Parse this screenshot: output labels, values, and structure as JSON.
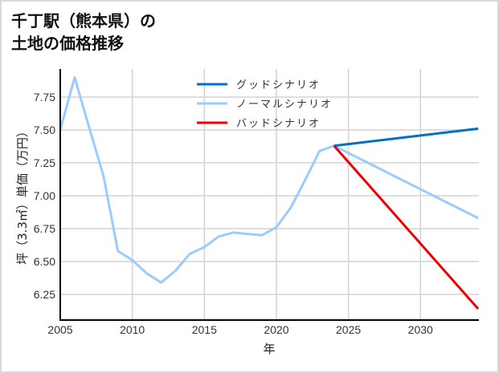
{
  "title": "千丁駅（熊本県）の\n土地の価格推移",
  "colors": {
    "good": "#0070C8",
    "normal": "#99CCFF",
    "bad": "#EE0000",
    "grid": "#d3d3d3",
    "axis": "#000000",
    "border": "#d8d8d8"
  },
  "chart_data": {
    "type": "line",
    "title": "千丁駅（熊本県）の土地の価格推移",
    "xlabel": "年",
    "ylabel": "坪（3.3㎡）単価（万円）",
    "xlim": [
      2005,
      2034
    ],
    "ylim": [
      6.06,
      7.96
    ],
    "x_ticks": [
      2005,
      2010,
      2015,
      2020,
      2025,
      2030
    ],
    "y_ticks": [
      6.25,
      6.5,
      6.75,
      7.0,
      7.25,
      7.5,
      7.75
    ],
    "y_tick_labels": [
      "6.25",
      "6.50",
      "6.75",
      "7.00",
      "7.25",
      "7.50",
      "7.75"
    ],
    "grid": true,
    "legend_position": "upper center",
    "series": [
      {
        "name": "グッドシナリオ",
        "color": "#0070C8",
        "x": [
          2024,
          2034
        ],
        "values": [
          7.38,
          7.51
        ]
      },
      {
        "name": "ノーマルシナリオ",
        "color": "#99CCFF",
        "x": [
          2005,
          2006,
          2007,
          2008,
          2009,
          2010,
          2011,
          2012,
          2013,
          2014,
          2015,
          2016,
          2017,
          2018,
          2019,
          2020,
          2021,
          2022,
          2023,
          2024,
          2034
        ],
        "values": [
          7.5,
          7.9,
          7.52,
          7.15,
          6.58,
          6.51,
          6.41,
          6.34,
          6.43,
          6.56,
          6.61,
          6.69,
          6.72,
          6.71,
          6.7,
          6.76,
          6.91,
          7.12,
          7.34,
          7.38,
          6.83
        ]
      },
      {
        "name": "バッドシナリオ",
        "color": "#EE0000",
        "x": [
          2024,
          2034
        ],
        "values": [
          7.38,
          6.14
        ]
      }
    ]
  }
}
